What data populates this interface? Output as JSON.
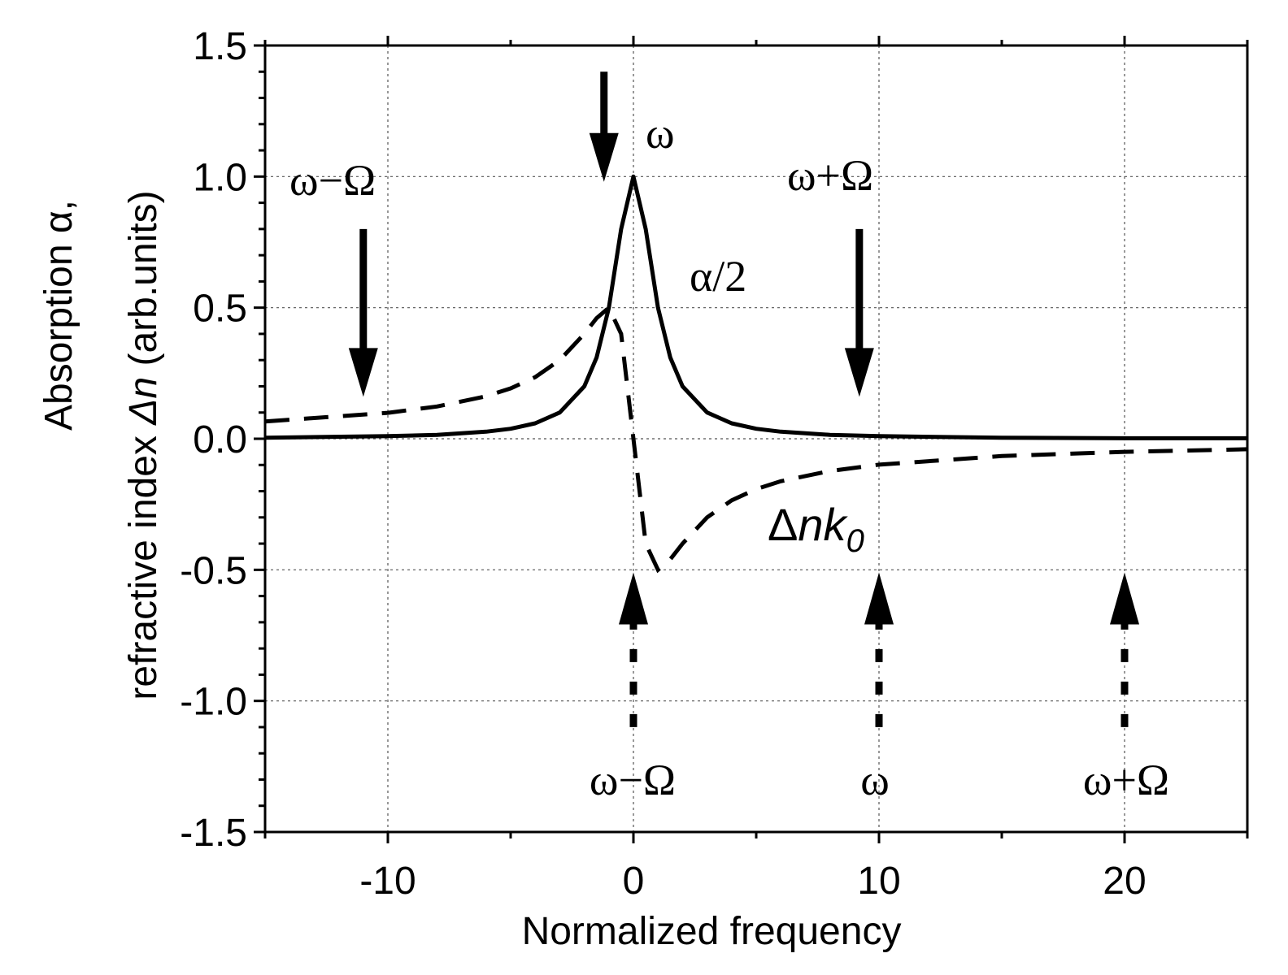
{
  "chart_data": {
    "type": "line",
    "title": "",
    "xlabel": "Normalized frequency",
    "ylabel_line1": "Absorption α,",
    "ylabel_line2_pre": "refractive index ",
    "ylabel_line2_sym": "Δn",
    "ylabel_line2_post": " (arb.units)",
    "xlim": [
      -15,
      25
    ],
    "ylim": [
      -1.5,
      1.5
    ],
    "grid": true,
    "xticks": [
      {
        "value": -10,
        "label": "-10"
      },
      {
        "value": 0,
        "label": "0"
      },
      {
        "value": 10,
        "label": "10"
      },
      {
        "value": 20,
        "label": "20"
      }
    ],
    "yticks": [
      {
        "value": 1.5,
        "label": "1.5"
      },
      {
        "value": 1.0,
        "label": "1.0"
      },
      {
        "value": 0.5,
        "label": "0.5"
      },
      {
        "value": 0.0,
        "label": "0.0"
      },
      {
        "value": -0.5,
        "label": "-0.5"
      },
      {
        "value": -1.0,
        "label": "-1.0"
      },
      {
        "value": -1.5,
        "label": "-1.5"
      }
    ],
    "series": [
      {
        "name": "α/2",
        "style": "solid",
        "formula": "1/(1+x^2)",
        "points": [
          [
            -15,
            0.004
          ],
          [
            -10,
            0.01
          ],
          [
            -8,
            0.015
          ],
          [
            -6,
            0.027
          ],
          [
            -5,
            0.038
          ],
          [
            -4,
            0.059
          ],
          [
            -3,
            0.1
          ],
          [
            -2,
            0.2
          ],
          [
            -1.5,
            0.31
          ],
          [
            -1,
            0.5
          ],
          [
            -0.5,
            0.8
          ],
          [
            0,
            1.0
          ],
          [
            0.5,
            0.8
          ],
          [
            1,
            0.5
          ],
          [
            1.5,
            0.31
          ],
          [
            2,
            0.2
          ],
          [
            3,
            0.1
          ],
          [
            4,
            0.059
          ],
          [
            5,
            0.038
          ],
          [
            6,
            0.027
          ],
          [
            8,
            0.015
          ],
          [
            10,
            0.01
          ],
          [
            15,
            0.004
          ],
          [
            20,
            0.002
          ],
          [
            25,
            0.002
          ]
        ]
      },
      {
        "name": "Δnk0",
        "style": "dashed",
        "formula": "-x/(1+x^2)",
        "points": [
          [
            -15,
            0.066
          ],
          [
            -10,
            0.099
          ],
          [
            -8,
            0.123
          ],
          [
            -6,
            0.162
          ],
          [
            -5,
            0.192
          ],
          [
            -4,
            0.235
          ],
          [
            -3,
            0.3
          ],
          [
            -2,
            0.4
          ],
          [
            -1.5,
            0.46
          ],
          [
            -1,
            0.5
          ],
          [
            -0.5,
            0.4
          ],
          [
            0,
            0.0
          ],
          [
            0.5,
            -0.4
          ],
          [
            1,
            -0.5
          ],
          [
            1.5,
            -0.46
          ],
          [
            2,
            -0.4
          ],
          [
            3,
            -0.3
          ],
          [
            4,
            -0.235
          ],
          [
            5,
            -0.192
          ],
          [
            6,
            -0.162
          ],
          [
            8,
            -0.123
          ],
          [
            10,
            -0.099
          ],
          [
            15,
            -0.066
          ],
          [
            20,
            -0.05
          ],
          [
            25,
            -0.04
          ]
        ]
      }
    ],
    "annotations": {
      "omega_top": "ω",
      "omega_minus_top": "ω−Ω",
      "omega_plus_top": "ω+Ω",
      "alpha_label": "α/2",
      "dn_label_prefix": "Δ",
      "dn_label_italic": "nk",
      "dn_label_sub": "0",
      "omega_minus_bottom": "ω−Ω",
      "omega_bottom": "ω",
      "omega_plus_bottom": "ω+Ω"
    },
    "arrows_down_solid": [
      {
        "x": -11,
        "y_from": 0.8,
        "y_to": 0.16
      },
      {
        "x": -1.2,
        "y_from": 1.4,
        "y_to": 0.98
      },
      {
        "x": 9.2,
        "y_from": 0.8,
        "y_to": 0.16
      }
    ],
    "arrows_up_dotted": [
      {
        "x": 0,
        "y_from": -1.1,
        "y_to": -0.51
      },
      {
        "x": 10,
        "y_from": -1.1,
        "y_to": -0.51
      },
      {
        "x": 20,
        "y_from": -1.1,
        "y_to": -0.51
      }
    ]
  }
}
